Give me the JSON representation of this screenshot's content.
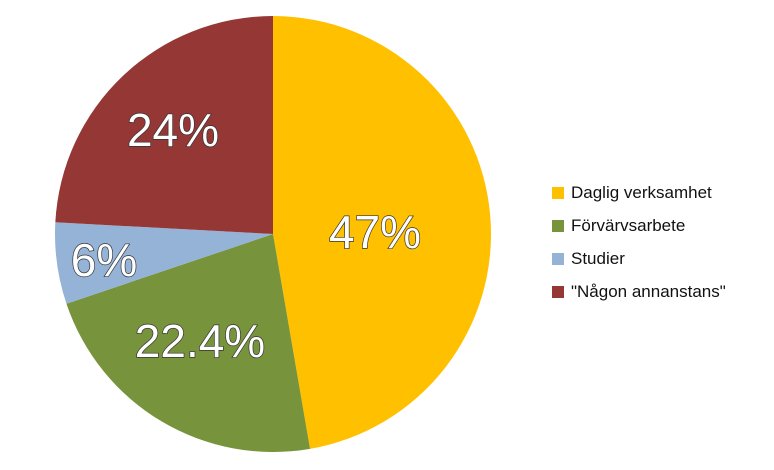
{
  "chart_data": {
    "type": "pie",
    "categories": [
      "Daglig verksamhet",
      "Förvärvsarbete",
      "Studier",
      "\"Någon annanstans\""
    ],
    "values": [
      47,
      22.4,
      6,
      24
    ],
    "data_labels": [
      "47%",
      "22.4%",
      "6%",
      "24%"
    ],
    "colors": [
      "#FFC000",
      "#77933C",
      "#95B3D7",
      "#953735"
    ],
    "start_angle": "12 o'clock",
    "direction": "clockwise",
    "legend_position": "right",
    "title": ""
  }
}
